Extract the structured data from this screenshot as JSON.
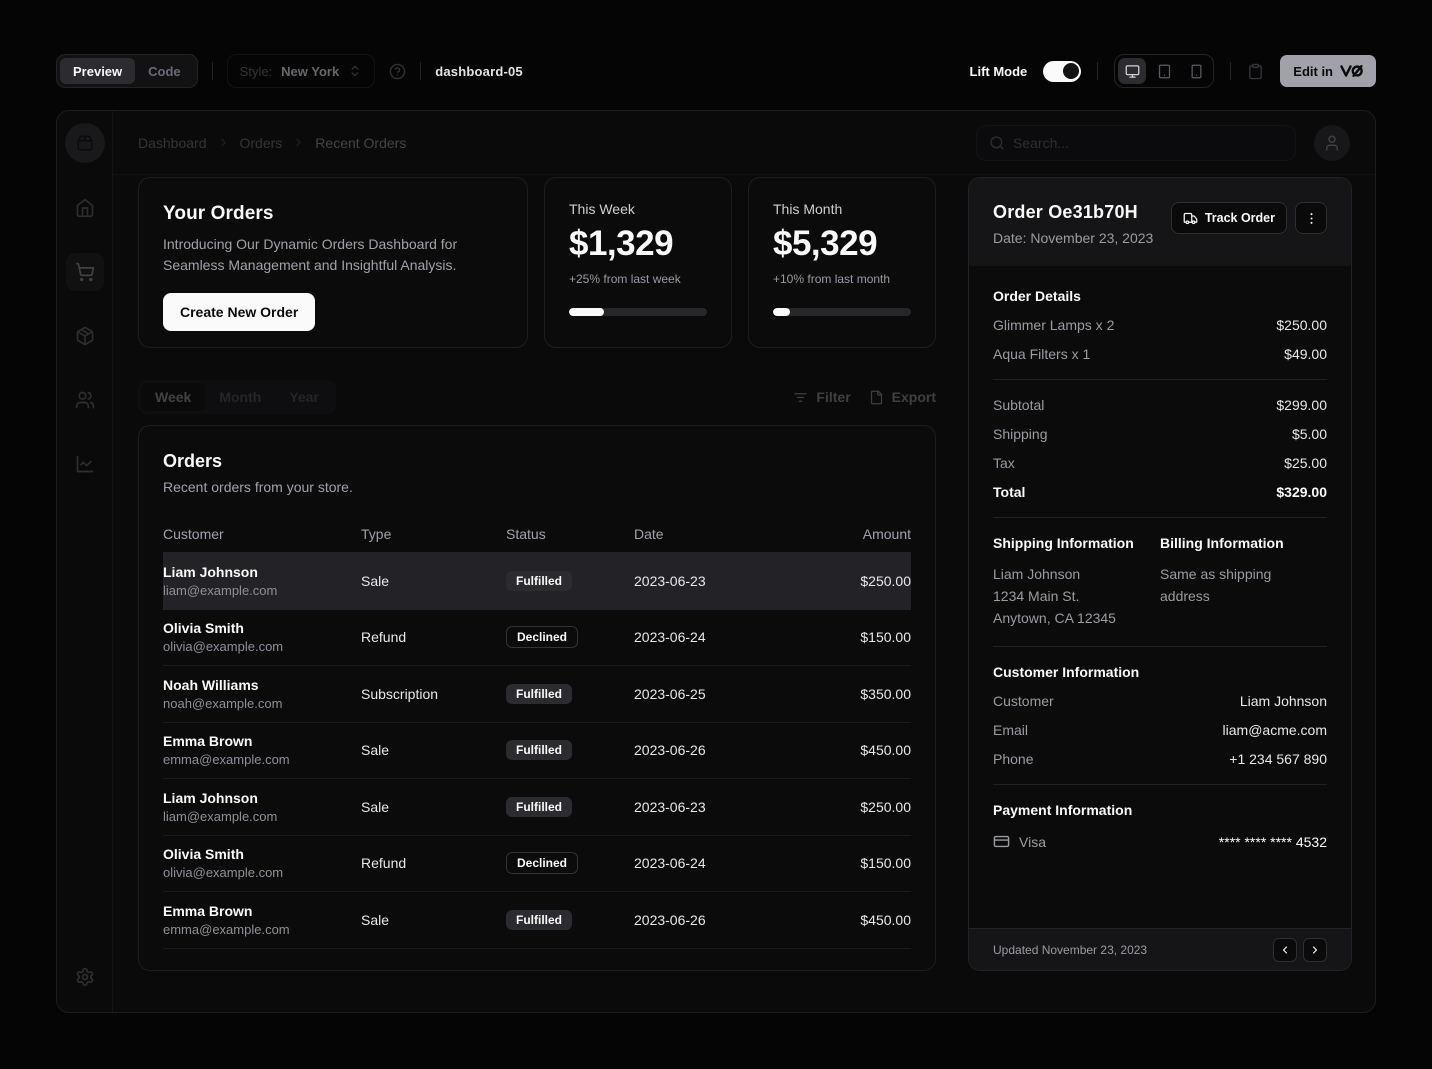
{
  "colors": {
    "background": "#050505",
    "card": "#0b0b0c",
    "border": "#232327",
    "foreground": "#fafafa",
    "muted_text": "#a1a1aa",
    "badge_secondary_bg": "#27272a",
    "selected_row_bg": "#232327",
    "edit_button_bg": "#a1a1aa",
    "progress_fill": "#fafafa"
  },
  "toolbar": {
    "preview_label": "Preview",
    "code_label": "Code",
    "style_label": "Style:",
    "style_value": "New York",
    "page_name": "dashboard-05",
    "lift_mode_label": "Lift Mode",
    "edit_in_label": "Edit in"
  },
  "dashboard": {
    "breadcrumb": [
      "Dashboard",
      "Orders",
      "Recent Orders"
    ],
    "search": {
      "placeholder": "Search..."
    },
    "hero": {
      "title": "Your Orders",
      "description": "Introducing Our Dynamic Orders Dashboard for Seamless Management and Insightful Analysis.",
      "cta_label": "Create New Order"
    },
    "stats": [
      {
        "label": "This Week",
        "value": "$1,329",
        "note": "+25% from last week",
        "progress": 25
      },
      {
        "label": "This Month",
        "value": "$5,329",
        "note": "+10% from last month",
        "progress": 12
      }
    ],
    "tabs": [
      "Week",
      "Month",
      "Year"
    ],
    "active_tab": "Week",
    "filter_label": "Filter",
    "export_label": "Export",
    "orders": {
      "title": "Orders",
      "description": "Recent orders from your store.",
      "columns": [
        "Customer",
        "Type",
        "Status",
        "Date",
        "Amount"
      ],
      "rows": [
        {
          "name": "Liam Johnson",
          "email": "liam@example.com",
          "type": "Sale",
          "status": "Fulfilled",
          "badge_variant": "secondary",
          "date": "2023-06-23",
          "amount": "$250.00",
          "selected": true
        },
        {
          "name": "Olivia Smith",
          "email": "olivia@example.com",
          "type": "Refund",
          "status": "Declined",
          "badge_variant": "outline",
          "date": "2023-06-24",
          "amount": "$150.00",
          "selected": false
        },
        {
          "name": "Noah Williams",
          "email": "noah@example.com",
          "type": "Subscription",
          "status": "Fulfilled",
          "badge_variant": "secondary",
          "date": "2023-06-25",
          "amount": "$350.00",
          "selected": false
        },
        {
          "name": "Emma Brown",
          "email": "emma@example.com",
          "type": "Sale",
          "status": "Fulfilled",
          "badge_variant": "secondary",
          "date": "2023-06-26",
          "amount": "$450.00",
          "selected": false
        },
        {
          "name": "Liam Johnson",
          "email": "liam@example.com",
          "type": "Sale",
          "status": "Fulfilled",
          "badge_variant": "secondary",
          "date": "2023-06-23",
          "amount": "$250.00",
          "selected": false
        },
        {
          "name": "Olivia Smith",
          "email": "olivia@example.com",
          "type": "Refund",
          "status": "Declined",
          "badge_variant": "outline",
          "date": "2023-06-24",
          "amount": "$150.00",
          "selected": false
        },
        {
          "name": "Emma Brown",
          "email": "emma@example.com",
          "type": "Sale",
          "status": "Fulfilled",
          "badge_variant": "secondary",
          "date": "2023-06-26",
          "amount": "$450.00",
          "selected": false
        }
      ]
    },
    "order_panel": {
      "title": "Order Oe31b70H",
      "date_line": "Date: November 23, 2023",
      "track_label": "Track Order",
      "details_title": "Order Details",
      "items": [
        {
          "label": "Glimmer Lamps x 2",
          "value": "$250.00"
        },
        {
          "label": "Aqua Filters x 1",
          "value": "$49.00"
        }
      ],
      "totals": [
        {
          "label": "Subtotal",
          "value": "$299.00"
        },
        {
          "label": "Shipping",
          "value": "$5.00"
        },
        {
          "label": "Tax",
          "value": "$25.00"
        },
        {
          "label": "Total",
          "value": "$329.00"
        }
      ],
      "shipping_title": "Shipping Information",
      "shipping_lines": [
        "Liam Johnson",
        "1234 Main St.",
        "Anytown, CA 12345"
      ],
      "billing_title": "Billing Information",
      "billing_note": "Same as shipping address",
      "customer_title": "Customer Information",
      "customer_rows": [
        {
          "label": "Customer",
          "value": "Liam Johnson"
        },
        {
          "label": "Email",
          "value": "liam@acme.com"
        },
        {
          "label": "Phone",
          "value": "+1 234 567 890"
        }
      ],
      "payment_title": "Payment Information",
      "payment_method": "Visa",
      "payment_number": "**** **** **** 4532",
      "footer_text": "Updated November 23, 2023"
    }
  },
  "icons": {
    "sidebar": [
      "package2-icon",
      "home-icon",
      "shopping-cart-icon",
      "package-icon",
      "users-icon",
      "line-chart-icon",
      "settings-icon"
    ],
    "toolbar": [
      "chevrons-up-down-icon",
      "help-circle-icon",
      "monitor-icon",
      "tablet-icon",
      "smartphone-icon",
      "clipboard-icon",
      "v0-logo-icon"
    ],
    "content": [
      "search-icon",
      "user-icon",
      "filter-icon",
      "file-icon",
      "truck-icon",
      "more-vertical-icon",
      "credit-card-icon",
      "chevron-left-icon",
      "chevron-right-icon"
    ]
  }
}
